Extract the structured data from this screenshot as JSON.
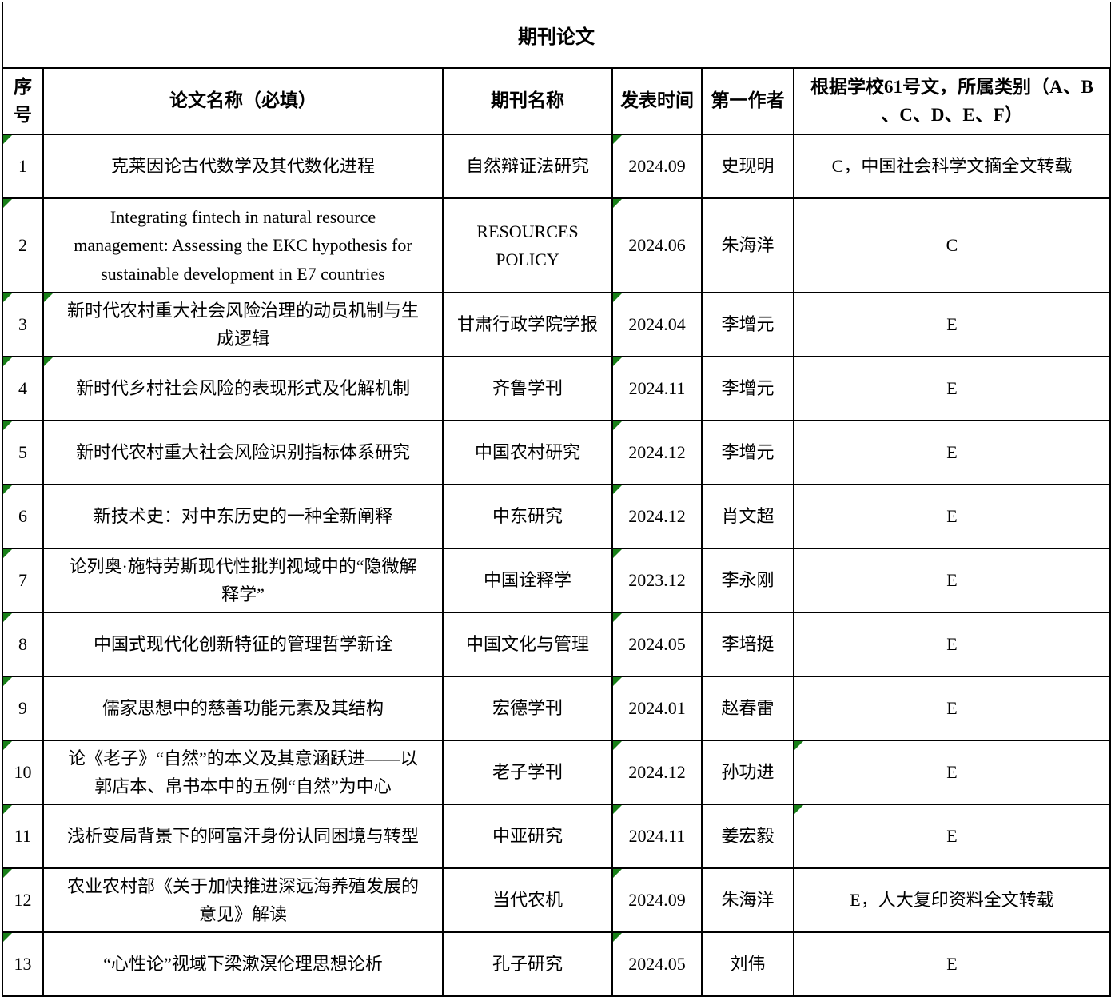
{
  "title": "期刊论文",
  "colors": {
    "flag_green": "#188018",
    "border": "#000000",
    "background": "#ffffff"
  },
  "table": {
    "headers": {
      "no": "序号",
      "paper": "论文名称（必填）",
      "journal": "期刊名称",
      "date": "发表时间",
      "author": "第一作者",
      "category": "根据学校61号文，所属类别（A、B\n、C、D、E、F）"
    },
    "flag_icon_meaning": "green-corner-flag",
    "rows": [
      {
        "no": "1",
        "paper": "克莱因论古代数学及其代数化进程",
        "journal": "自然辩证法研究",
        "date": "2024.09",
        "author": "史现明",
        "category": "C，中国社会科学文摘全文转载",
        "flags": [
          0,
          3
        ],
        "tall": false
      },
      {
        "no": "2",
        "paper": "Integrating fintech in natural resource\nmanagement: Assessing the EKC hypothesis for\nsustainable development in E7 countries",
        "journal": "RESOURCES\nPOLICY",
        "date": "2024.06",
        "author": "朱海洋",
        "category": "C",
        "flags": [
          0,
          3
        ],
        "tall": true
      },
      {
        "no": "3",
        "paper": "新时代农村重大社会风险治理的动员机制与生\n成逻辑",
        "journal": "甘肃行政学院学报",
        "date": "2024.04",
        "author": "李增元",
        "category": "E",
        "flags": [
          0,
          1,
          3
        ],
        "tall": false
      },
      {
        "no": "4",
        "paper": "新时代乡村社会风险的表现形式及化解机制",
        "journal": "齐鲁学刊",
        "date": "2024.11",
        "author": "李增元",
        "category": "E",
        "flags": [
          0,
          1,
          3
        ],
        "tall": false
      },
      {
        "no": "5",
        "paper": "新时代农村重大社会风险识别指标体系研究",
        "journal": "中国农村研究",
        "date": "2024.12",
        "author": "李增元",
        "category": "E",
        "flags": [
          0,
          3
        ],
        "tall": false
      },
      {
        "no": "6",
        "paper": "新技术史：对中东历史的一种全新阐释",
        "journal": "中东研究",
        "date": "2024.12",
        "author": "肖文超",
        "category": "E",
        "flags": [
          0,
          3
        ],
        "tall": false
      },
      {
        "no": "7",
        "paper": "论列奥·施特劳斯现代性批判视域中的“隐微解\n释学”",
        "journal": "中国诠释学",
        "date": "2023.12",
        "author": "李永刚",
        "category": "E",
        "flags": [
          0,
          3
        ],
        "tall": false
      },
      {
        "no": "8",
        "paper": "中国式现代化创新特征的管理哲学新诠",
        "journal": "中国文化与管理",
        "date": "2024.05",
        "author": "李培挺",
        "category": "E",
        "flags": [
          0,
          3
        ],
        "tall": false
      },
      {
        "no": "9",
        "paper": "儒家思想中的慈善功能元素及其结构",
        "journal": "宏德学刊",
        "date": "2024.01",
        "author": "赵春雷",
        "category": "E",
        "flags": [
          0,
          3
        ],
        "tall": false
      },
      {
        "no": "10",
        "paper": "论《老子》“自然”的本义及其意涵跃进——以\n郭店本、帛书本中的五例“自然”为中心",
        "journal": "老子学刊",
        "date": "2024.12",
        "author": "孙功进",
        "category": "E",
        "flags": [
          0,
          3,
          5
        ],
        "tall": false
      },
      {
        "no": "11",
        "paper": "浅析变局背景下的阿富汗身份认同困境与转型",
        "journal": "中亚研究",
        "date": "2024.11",
        "author": "姜宏毅",
        "category": "E",
        "flags": [
          0,
          3,
          5
        ],
        "tall": false
      },
      {
        "no": "12",
        "paper": "农业农村部《关于加快推进深远海养殖发展的\n意见》解读",
        "journal": "当代农机",
        "date": "2024.09",
        "author": "朱海洋",
        "category": "E，人大复印资料全文转载",
        "flags": [
          0,
          3
        ],
        "tall": false
      },
      {
        "no": "13",
        "paper": "“心性论”视域下梁漱溟伦理思想论析",
        "journal": "孔子研究",
        "date": "2024.05",
        "author": "刘伟",
        "category": "E",
        "flags": [
          0,
          3
        ],
        "tall": false
      }
    ]
  }
}
